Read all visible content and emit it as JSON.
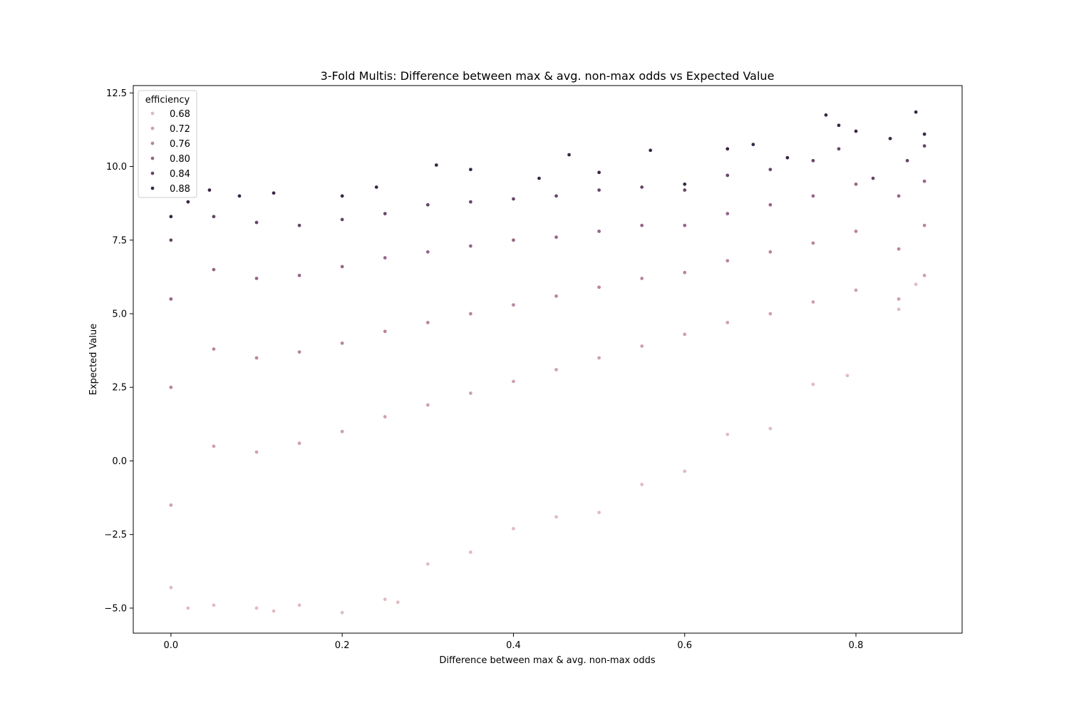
{
  "chart_data": {
    "type": "scatter",
    "title": "3-Fold Multis: Difference between max & avg. non-max odds vs Expected Value",
    "xlabel": "Difference between max & avg. non-max odds",
    "ylabel": "Expected Value",
    "xlim": [
      -0.044,
      0.924
    ],
    "ylim": [
      -5.85,
      12.75
    ],
    "xticks": [
      0.0,
      0.2,
      0.4,
      0.6,
      0.8
    ],
    "xtick_labels": [
      "0.0",
      "0.2",
      "0.4",
      "0.6",
      "0.8"
    ],
    "yticks": [
      -5.0,
      -2.5,
      0.0,
      2.5,
      5.0,
      7.5,
      10.0,
      12.5
    ],
    "ytick_labels": [
      "−5.0",
      "−2.5",
      "0.0",
      "2.5",
      "5.0",
      "7.5",
      "10.0",
      "12.5"
    ],
    "grid": false,
    "legend": {
      "title": "efficiency",
      "placement": "top-left",
      "entries": [
        {
          "label": "0.68",
          "value": 0.68
        },
        {
          "label": "0.72",
          "value": 0.72
        },
        {
          "label": "0.76",
          "value": 0.76
        },
        {
          "label": "0.80",
          "value": 0.8
        },
        {
          "label": "0.84",
          "value": 0.84
        },
        {
          "label": "0.88",
          "value": 0.88
        }
      ]
    },
    "hue_range": [
      0.66,
      0.89
    ],
    "colors": {
      "low": "#ebc9c5",
      "mid": "#b3799a",
      "high": "#2d1e3e"
    },
    "series": [
      {
        "hue": 0.88,
        "points": [
          [
            0.0,
            8.3
          ],
          [
            0.02,
            8.8
          ],
          [
            0.045,
            9.2
          ],
          [
            0.08,
            9.0
          ],
          [
            0.12,
            9.1
          ],
          [
            0.2,
            9.0
          ],
          [
            0.24,
            9.3
          ],
          [
            0.31,
            10.05
          ],
          [
            0.35,
            9.9
          ],
          [
            0.43,
            9.6
          ],
          [
            0.465,
            10.4
          ],
          [
            0.5,
            9.8
          ],
          [
            0.56,
            10.55
          ],
          [
            0.6,
            9.4
          ],
          [
            0.65,
            10.6
          ],
          [
            0.68,
            10.75
          ],
          [
            0.72,
            10.3
          ],
          [
            0.765,
            11.75
          ],
          [
            0.78,
            11.4
          ],
          [
            0.8,
            11.2
          ],
          [
            0.84,
            10.95
          ],
          [
            0.87,
            11.85
          ],
          [
            0.88,
            11.1
          ]
        ]
      },
      {
        "hue": 0.84,
        "points": [
          [
            0.0,
            7.5
          ],
          [
            0.05,
            8.3
          ],
          [
            0.1,
            8.1
          ],
          [
            0.15,
            8.0
          ],
          [
            0.2,
            8.2
          ],
          [
            0.25,
            8.4
          ],
          [
            0.3,
            8.7
          ],
          [
            0.35,
            8.8
          ],
          [
            0.4,
            8.9
          ],
          [
            0.45,
            9.0
          ],
          [
            0.5,
            9.2
          ],
          [
            0.55,
            9.3
          ],
          [
            0.6,
            9.2
          ],
          [
            0.65,
            9.7
          ],
          [
            0.7,
            9.9
          ],
          [
            0.75,
            10.2
          ],
          [
            0.78,
            10.6
          ],
          [
            0.82,
            9.6
          ],
          [
            0.86,
            10.2
          ],
          [
            0.88,
            10.7
          ]
        ]
      },
      {
        "hue": 0.8,
        "points": [
          [
            0.0,
            5.5
          ],
          [
            0.05,
            6.5
          ],
          [
            0.1,
            6.2
          ],
          [
            0.15,
            6.3
          ],
          [
            0.2,
            6.6
          ],
          [
            0.25,
            6.9
          ],
          [
            0.3,
            7.1
          ],
          [
            0.35,
            7.3
          ],
          [
            0.4,
            7.5
          ],
          [
            0.45,
            7.6
          ],
          [
            0.5,
            7.8
          ],
          [
            0.55,
            8.0
          ],
          [
            0.6,
            8.0
          ],
          [
            0.65,
            8.4
          ],
          [
            0.7,
            8.7
          ],
          [
            0.75,
            9.0
          ],
          [
            0.8,
            9.4
          ],
          [
            0.85,
            9.0
          ],
          [
            0.88,
            9.5
          ]
        ]
      },
      {
        "hue": 0.76,
        "points": [
          [
            0.0,
            2.5
          ],
          [
            0.05,
            3.8
          ],
          [
            0.1,
            3.5
          ],
          [
            0.15,
            3.7
          ],
          [
            0.2,
            4.0
          ],
          [
            0.25,
            4.4
          ],
          [
            0.3,
            4.7
          ],
          [
            0.35,
            5.0
          ],
          [
            0.4,
            5.3
          ],
          [
            0.45,
            5.6
          ],
          [
            0.5,
            5.9
          ],
          [
            0.55,
            6.2
          ],
          [
            0.6,
            6.4
          ],
          [
            0.65,
            6.8
          ],
          [
            0.7,
            7.1
          ],
          [
            0.75,
            7.4
          ],
          [
            0.8,
            7.8
          ],
          [
            0.85,
            7.2
          ],
          [
            0.88,
            8.0
          ]
        ]
      },
      {
        "hue": 0.72,
        "points": [
          [
            0.0,
            -1.5
          ],
          [
            0.05,
            0.5
          ],
          [
            0.1,
            0.3
          ],
          [
            0.15,
            0.6
          ],
          [
            0.2,
            1.0
          ],
          [
            0.25,
            1.5
          ],
          [
            0.3,
            1.9
          ],
          [
            0.35,
            2.3
          ],
          [
            0.4,
            2.7
          ],
          [
            0.45,
            3.1
          ],
          [
            0.5,
            3.5
          ],
          [
            0.55,
            3.9
          ],
          [
            0.6,
            4.3
          ],
          [
            0.65,
            4.7
          ],
          [
            0.7,
            5.0
          ],
          [
            0.75,
            5.4
          ],
          [
            0.8,
            5.8
          ],
          [
            0.85,
            5.5
          ],
          [
            0.88,
            6.3
          ]
        ]
      },
      {
        "hue": 0.68,
        "points": [
          [
            0.0,
            -4.3
          ],
          [
            0.02,
            -5.0
          ],
          [
            0.05,
            -4.9
          ],
          [
            0.1,
            -5.0
          ],
          [
            0.12,
            -5.1
          ],
          [
            0.15,
            -4.9
          ],
          [
            0.2,
            -5.15
          ],
          [
            0.25,
            -4.7
          ],
          [
            0.265,
            -4.8
          ],
          [
            0.3,
            -3.5
          ],
          [
            0.35,
            -3.1
          ],
          [
            0.4,
            -2.3
          ],
          [
            0.45,
            -1.9
          ],
          [
            0.5,
            -1.75
          ],
          [
            0.55,
            -0.8
          ],
          [
            0.6,
            -0.35
          ],
          [
            0.65,
            0.9
          ],
          [
            0.7,
            1.1
          ],
          [
            0.75,
            2.6
          ],
          [
            0.79,
            2.9
          ],
          [
            0.85,
            5.15
          ],
          [
            0.87,
            6.0
          ]
        ]
      }
    ]
  }
}
